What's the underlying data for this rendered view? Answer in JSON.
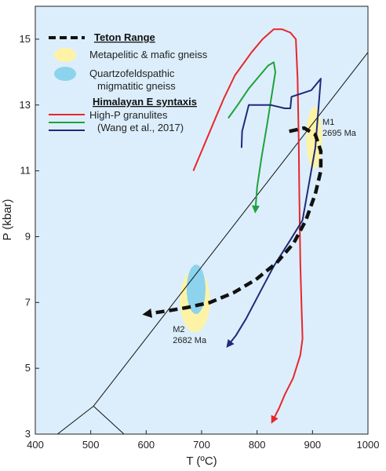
{
  "chart_data": {
    "type": "line",
    "xlabel": "T (ºC)",
    "ylabel": "P (kbar)",
    "xlim": [
      400,
      1000
    ],
    "ylim": [
      3,
      16
    ],
    "x_ticks": [
      400,
      500,
      600,
      700,
      800,
      900,
      1000
    ],
    "y_ticks": [
      3,
      5,
      7,
      9,
      11,
      13,
      15
    ],
    "grid": false,
    "background_color": "#dceefb",
    "legend_position": "top-left",
    "legend": [
      {
        "kind": "header",
        "text": "Teton Range",
        "symbol": "dashed-line",
        "color": "#111111"
      },
      {
        "kind": "entry",
        "text": "Metapelitic & mafic gneiss",
        "symbol": "ellipse",
        "color": "#fdf3a6"
      },
      {
        "kind": "entry",
        "text": "Quartzofeldspathic",
        "text2": "migmatitic gneiss",
        "symbol": "ellipse",
        "color": "#8dd3ee"
      },
      {
        "kind": "header",
        "text": "Himalayan E syntaxis"
      },
      {
        "kind": "entry",
        "text": "High-P granulites",
        "symbol": "line",
        "color": "#e8262a"
      },
      {
        "kind": "entry",
        "text": "(Wang et al., 2017)",
        "symbol": "line",
        "color": "#1f2a7a"
      }
    ],
    "series": [
      {
        "color": "#e8262a",
        "style": "solid-arrow",
        "x": [
          685,
          700,
          720,
          740,
          760,
          790,
          810,
          830,
          845,
          860,
          870,
          873,
          875,
          876,
          877,
          878,
          880,
          882,
          878,
          865,
          850,
          840,
          828
        ],
        "y": [
          11.0,
          11.6,
          12.4,
          13.2,
          13.9,
          14.6,
          15.0,
          15.3,
          15.3,
          15.2,
          15.0,
          13.8,
          12.0,
          10.5,
          9.3,
          8.2,
          7.0,
          5.9,
          5.4,
          4.7,
          4.2,
          3.8,
          3.4
        ]
      },
      {
        "color": "#1fa23a",
        "style": "solid-arrow",
        "x": [
          748,
          765,
          785,
          805,
          820,
          830,
          833,
          818,
          808,
          800,
          797
        ],
        "y": [
          12.6,
          13.0,
          13.5,
          13.9,
          14.2,
          14.3,
          14.0,
          12.4,
          11.4,
          10.5,
          9.8
        ]
      },
      {
        "color": "#1f2a7a",
        "style": "solid-arrow",
        "x": [
          772,
          773,
          785,
          825,
          850,
          860,
          862,
          898,
          915,
          905,
          882,
          860,
          830,
          805,
          780,
          762,
          748
        ],
        "y": [
          11.7,
          12.2,
          13.0,
          13.0,
          12.9,
          12.9,
          13.25,
          13.45,
          13.8,
          11.7,
          9.5,
          8.9,
          8.1,
          7.3,
          6.5,
          6.0,
          5.7
        ]
      },
      {
        "color": "#111111",
        "style": "dashed-arrow",
        "x": [
          858,
          885,
          905,
          915,
          915,
          905,
          888,
          866,
          835,
          798,
          758,
          715,
          675,
          640,
          600
        ],
        "y": [
          12.2,
          12.3,
          12.1,
          11.6,
          11.0,
          10.3,
          9.5,
          8.8,
          8.2,
          7.7,
          7.3,
          7.0,
          6.85,
          6.75,
          6.65
        ]
      }
    ],
    "reaction_lines": [
      {
        "color": "#111111",
        "x": [
          505,
          1000
        ],
        "y": [
          3.85,
          14.6
        ]
      },
      {
        "color": "#111111",
        "x": [
          505,
          440
        ],
        "y": [
          3.85,
          3.0
        ]
      },
      {
        "color": "#111111",
        "x": [
          505,
          560
        ],
        "y": [
          3.85,
          3.0
        ]
      }
    ],
    "fields": [
      {
        "color": "#fdf3a6",
        "cx": 688,
        "cy": 7.05,
        "rx": 27,
        "ry": 0.95
      },
      {
        "color": "#8dd3ee",
        "cx": 690,
        "cy": 7.4,
        "rx": 17,
        "ry": 0.75
      },
      {
        "color": "#fdf3a6",
        "cx": 903,
        "cy": 12.0,
        "rx": 14,
        "ry": 0.95
      }
    ],
    "annotations": [
      {
        "line1": "M1",
        "line2": "2695 Ma",
        "x": 918,
        "y": 12.4
      },
      {
        "line1": "M2",
        "line2": "2682 Ma",
        "x": 648,
        "y": 6.1
      }
    ]
  }
}
